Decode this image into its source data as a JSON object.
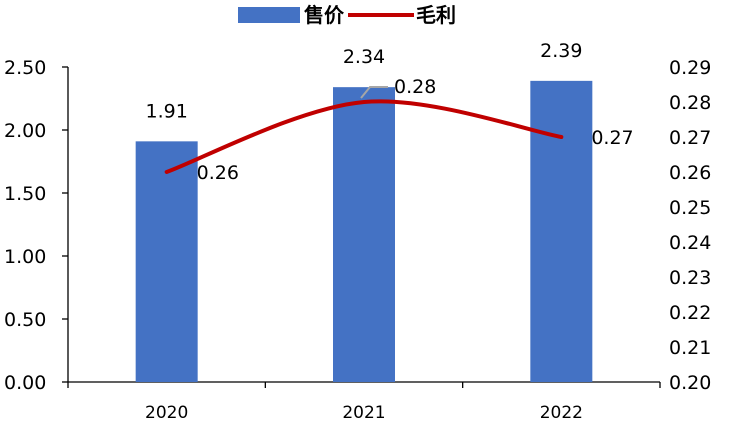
{
  "legend": {
    "bar_label": "售价",
    "line_label": "毛利"
  },
  "colors": {
    "bar": "#4472C4",
    "line": "#C00000",
    "axis": "#000000",
    "leader": "#A6A6A6"
  },
  "chart_data": {
    "type": "bar",
    "categories": [
      "2020",
      "2021",
      "2022"
    ],
    "series": [
      {
        "name": "售价",
        "type": "bar",
        "axis": "left",
        "values": [
          1.91,
          2.34,
          2.39
        ],
        "labels": [
          "1.91",
          "2.34",
          "2.39"
        ]
      },
      {
        "name": "毛利",
        "type": "line",
        "axis": "right",
        "smooth": true,
        "values": [
          0.26,
          0.28,
          0.27
        ],
        "labels": [
          "0.26",
          "0.28",
          "0.27"
        ]
      }
    ],
    "y_left": {
      "min": 0,
      "max": 2.5,
      "ticks": [
        0,
        0.5,
        1,
        1.5,
        2,
        2.5
      ],
      "tick_labels": [
        "0.00",
        "0.50",
        "1.00",
        "1.50",
        "2.00",
        "2.50"
      ]
    },
    "y_right": {
      "min": 0.2,
      "max": 0.29,
      "ticks": [
        0.2,
        0.21,
        0.22,
        0.23,
        0.24,
        0.25,
        0.26,
        0.27,
        0.28,
        0.29
      ],
      "tick_labels": [
        "0.20",
        "0.21",
        "0.22",
        "0.23",
        "0.24",
        "0.25",
        "0.26",
        "0.27",
        "0.28",
        "0.29"
      ]
    },
    "grid": false,
    "legend_position": "top-center"
  }
}
